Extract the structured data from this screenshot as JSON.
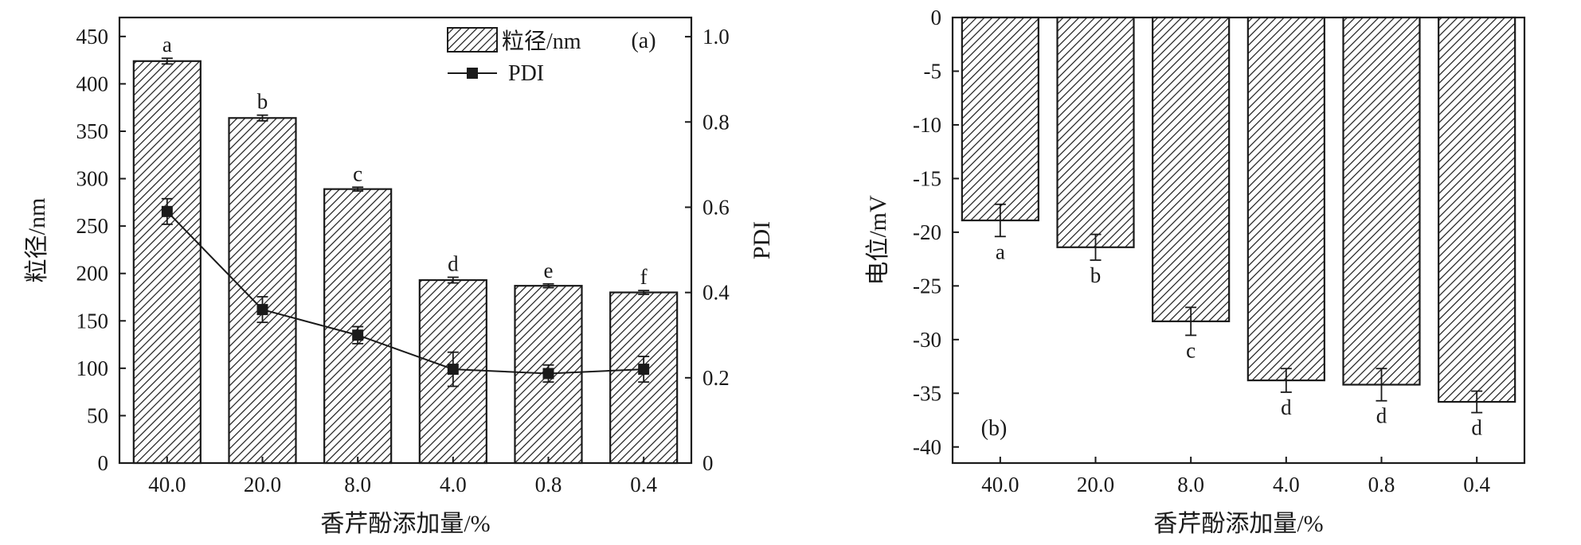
{
  "chart_data": [
    {
      "panel": "(a)",
      "type": "bar",
      "xlabel": "香芹酚添加量/%",
      "ylabel": "粒径/nm",
      "y2label": "PDI",
      "categories": [
        "40.0",
        "20.0",
        "8.0",
        "4.0",
        "0.8",
        "0.4"
      ],
      "ylim": [
        0,
        470
      ],
      "yticks": [
        0,
        50,
        100,
        150,
        200,
        250,
        300,
        350,
        400,
        450
      ],
      "y2lim": [
        0,
        1.045
      ],
      "y2ticks": [
        0,
        0.2,
        0.4,
        0.6,
        0.8,
        1.0
      ],
      "y2ticklabels": [
        "0",
        "0.2",
        "0.4",
        "0.6",
        "0.8",
        "1.0"
      ],
      "legend": {
        "placement": "top-center",
        "bar_label": "粒径/nm",
        "line_label": "PDI"
      },
      "series": [
        {
          "name": "粒径/nm",
          "type": "bar",
          "axis": "left",
          "values": [
            424,
            364,
            289,
            193,
            187,
            180
          ],
          "errors": [
            3,
            3,
            2,
            3,
            2,
            2
          ],
          "labels": [
            "a",
            "b",
            "c",
            "d",
            "e",
            "f"
          ]
        },
        {
          "name": "PDI",
          "type": "line",
          "axis": "right",
          "values": [
            0.59,
            0.36,
            0.3,
            0.22,
            0.21,
            0.22
          ],
          "errors": [
            0.03,
            0.03,
            0.02,
            0.04,
            0.02,
            0.03
          ]
        }
      ]
    },
    {
      "panel": "(b)",
      "type": "bar",
      "xlabel": "香芹酚添加量/%",
      "ylabel": "电位/mV",
      "categories": [
        "40.0",
        "20.0",
        "8.0",
        "4.0",
        "0.8",
        "0.4"
      ],
      "ylim": [
        -41.5,
        0
      ],
      "yticks": [
        0,
        -5,
        -10,
        -15,
        -20,
        -25,
        -30,
        -35,
        -40
      ],
      "series": [
        {
          "name": "电位/mV",
          "type": "bar",
          "values": [
            -18.9,
            -21.4,
            -28.3,
            -33.8,
            -34.2,
            -35.8
          ],
          "errors": [
            1.5,
            1.2,
            1.3,
            1.1,
            1.5,
            1.0
          ],
          "labels": [
            "a",
            "b",
            "c",
            "d",
            "d",
            "d"
          ]
        }
      ]
    }
  ]
}
